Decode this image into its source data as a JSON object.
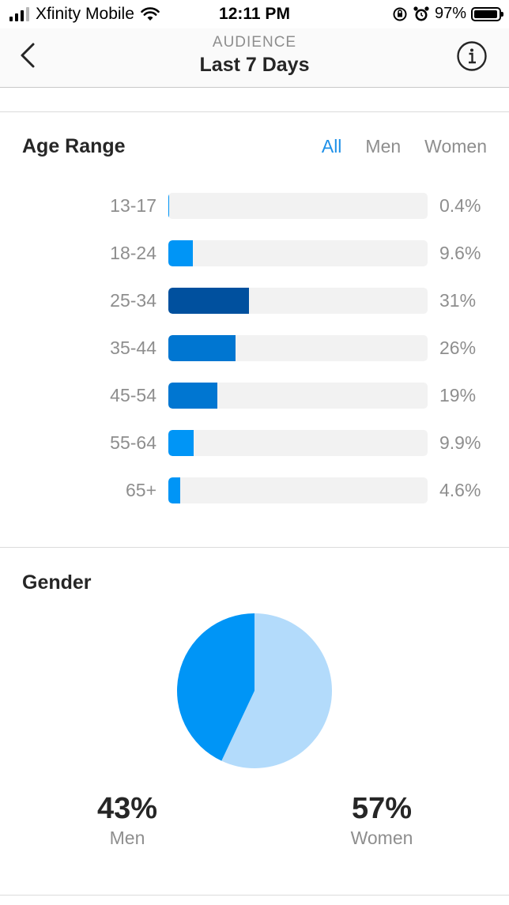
{
  "status_bar": {
    "carrier": "Xfinity Mobile",
    "time": "12:11 PM",
    "battery": "97%"
  },
  "header": {
    "subtitle": "AUDIENCE",
    "title": "Last 7 Days"
  },
  "age_range": {
    "title": "Age Range",
    "filters": [
      "All",
      "Men",
      "Women"
    ],
    "active_filter": "All",
    "chart_data": {
      "type": "bar",
      "orientation": "horizontal",
      "categories": [
        "13-17",
        "18-24",
        "25-34",
        "35-44",
        "45-54",
        "55-64",
        "65+"
      ],
      "values": [
        0.4,
        9.6,
        31,
        26,
        19,
        9.9,
        4.6
      ],
      "value_labels": [
        "0.4%",
        "9.6%",
        "31%",
        "26%",
        "19%",
        "9.9%",
        "4.6%"
      ],
      "xlim": [
        0,
        100
      ],
      "bar_colors": [
        "#0095f6",
        "#0095f6",
        "#00509e",
        "#0076d1",
        "#0076d1",
        "#0095f6",
        "#0095f6"
      ]
    }
  },
  "gender": {
    "title": "Gender",
    "men_pct": "43%",
    "men_label": "Men",
    "women_pct": "57%",
    "women_label": "Women",
    "chart_data": {
      "type": "pie",
      "categories": [
        "Men",
        "Women"
      ],
      "values": [
        43,
        57
      ],
      "colors": [
        "#0095f6",
        "#b3dbfb"
      ]
    }
  }
}
